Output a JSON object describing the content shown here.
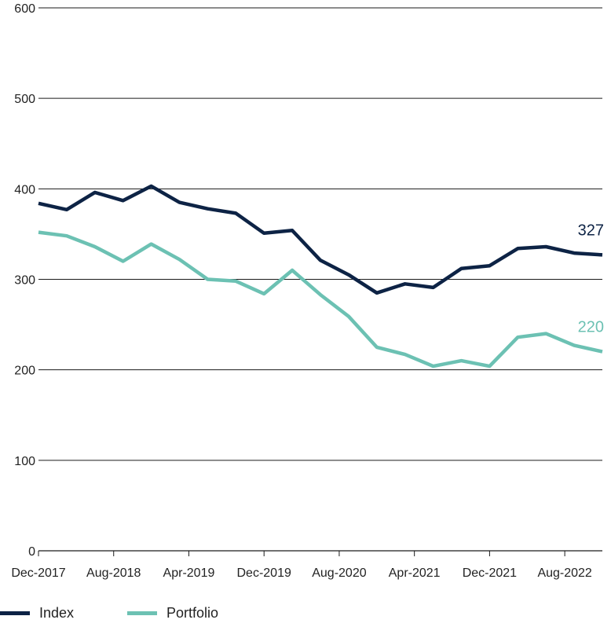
{
  "chart_data": {
    "type": "line",
    "x": [
      "Dec-2017",
      "Mar-2018",
      "Jun-2018",
      "Sep-2018",
      "Dec-2018",
      "Mar-2019",
      "Jun-2019",
      "Sep-2019",
      "Dec-2019",
      "Mar-2020",
      "Jun-2020",
      "Sep-2020",
      "Dec-2020",
      "Mar-2021",
      "Jun-2021",
      "Sep-2021",
      "Dec-2021",
      "Mar-2022",
      "Jun-2022",
      "Sep-2022",
      "Dec-2022"
    ],
    "x_tick_labels": [
      "Dec-2017",
      "Aug-2018",
      "Apr-2019",
      "Dec-2019",
      "Aug-2020",
      "Apr-2021",
      "Dec-2021",
      "Aug-2022"
    ],
    "y_ticks": [
      0,
      100,
      200,
      300,
      400,
      500,
      600
    ],
    "ylim": [
      0,
      600
    ],
    "grid": true,
    "legend_position": "bottom-left",
    "series": [
      {
        "name": "Index",
        "color": "#0d2345",
        "values": [
          384,
          377,
          396,
          387,
          403,
          385,
          378,
          373,
          351,
          354,
          321,
          305,
          285,
          295,
          291,
          312,
          315,
          334,
          336,
          329,
          327
        ],
        "end_label": "327"
      },
      {
        "name": "Portfolio",
        "color": "#6cc1b3",
        "values": [
          352,
          348,
          336,
          320,
          339,
          322,
          300,
          298,
          284,
          310,
          283,
          259,
          225,
          217,
          204,
          210,
          204,
          236,
          240,
          227,
          220
        ],
        "end_label": "220"
      }
    ]
  }
}
